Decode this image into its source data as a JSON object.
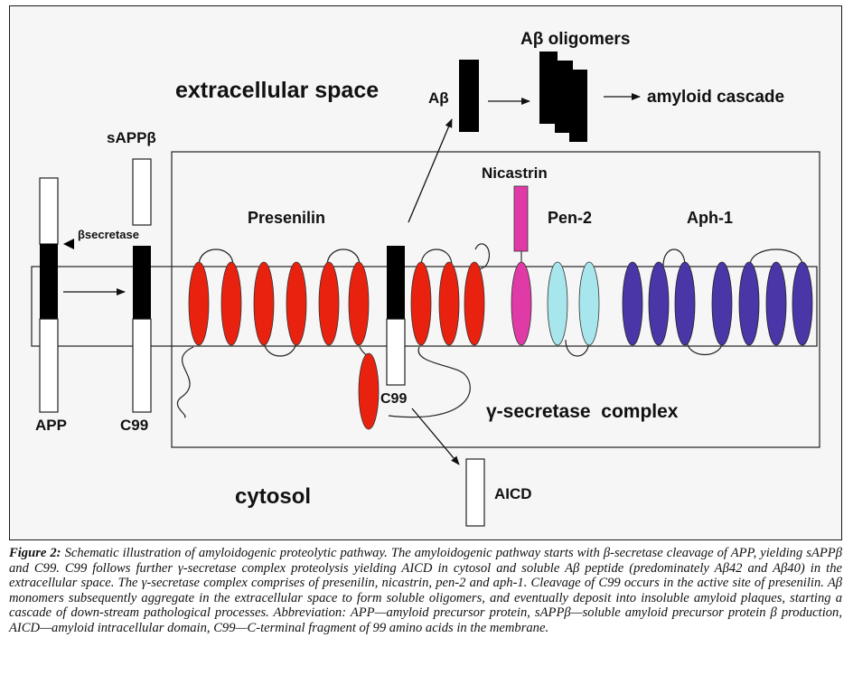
{
  "diagram": {
    "labels": {
      "extracellular": "extracellular space",
      "cytosol": "cytosol",
      "abeta": "Aβ",
      "oligomers": "Aβ oligomers",
      "cascade": "amyloid cascade",
      "sappb": "sAPPβ",
      "bsecretase": "βsecretase",
      "app": "APP",
      "c99_left": "C99",
      "c99_center": "C99",
      "presenilin": "Presenilin",
      "nicastrin": "Nicastrin",
      "pen2": "Pen-2",
      "aph1": "Aph-1",
      "gamma": "γ-secretase  complex",
      "aicd": "AICD"
    },
    "colors": {
      "presenilin": "#e8220f",
      "nicastrin": "#e03aa6",
      "pen2": "#a8e6ee",
      "aph1": "#4a36a6",
      "fragment": "#000000"
    }
  },
  "caption": {
    "title": "Figure 2:",
    "text": " Schematic illustration of amyloidogenic proteolytic pathway. The amyloidogenic pathway starts with β-secretase cleavage of APP, yielding sAPPβ and C99. C99 follows further γ-secretase complex proteolysis yielding AICD in cytosol and soluble Aβ peptide (predominately Aβ42 and Aβ40) in the extracellular space. The γ-secretase complex comprises of presenilin, nicastrin, pen-2 and aph-1. Cleavage of C99 occurs in the active site of presenilin. Aβ monomers subsequently aggregate in the extracellular space to form soluble oligomers, and eventually deposit into insoluble amyloid plaques, starting a cascade of down-stream pathological processes. Abbreviation: APP—amyloid precursor protein, sAPPβ—soluble amyloid precursor protein β production, AICD—amyloid intracellular domain, C99—C-terminal fragment of 99 amino acids in the membrane."
  }
}
